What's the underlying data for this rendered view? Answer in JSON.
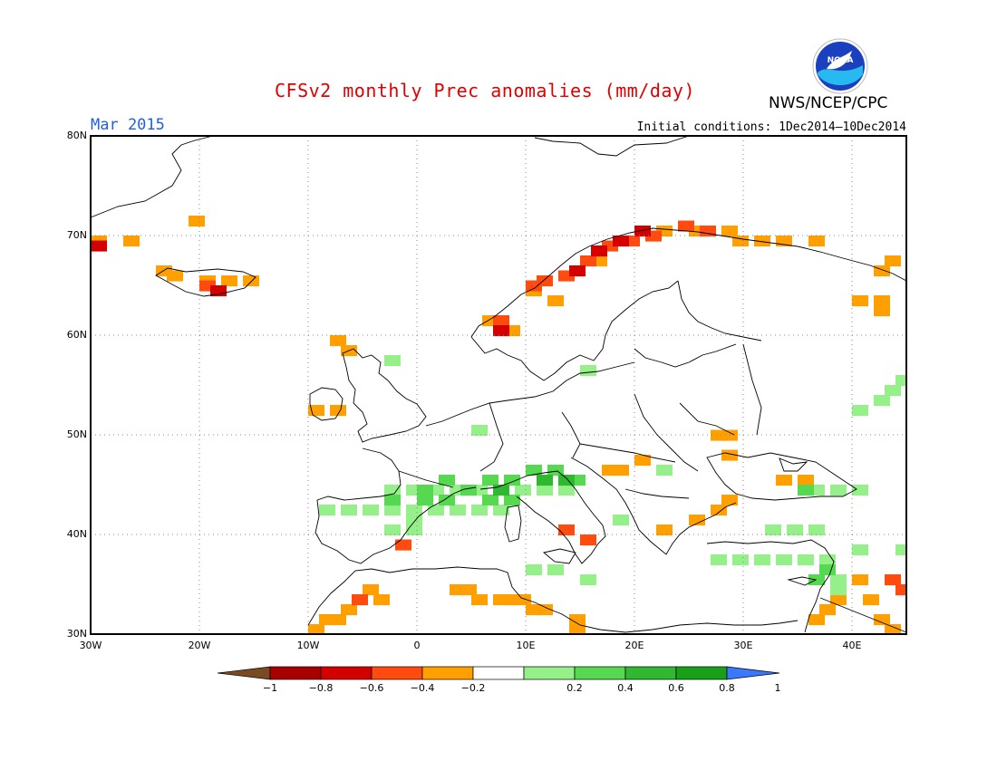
{
  "header": {
    "title": "CFSv2 monthly Prec anomalies (mm/day)",
    "agency": "NWS/NCEP/CPC",
    "month": "Mar 2015",
    "initial_conditions": "Initial conditions: 1Dec2014—10Dec2014",
    "logo_text": "NOAA"
  },
  "map": {
    "lon_range": [
      -30,
      45
    ],
    "lat_range": [
      30,
      80
    ],
    "lat_labels": [
      "80N",
      "70N",
      "60N",
      "50N",
      "40N",
      "30N"
    ],
    "lon_labels": [
      "30W",
      "20W",
      "10W",
      "0",
      "10E",
      "20E",
      "30E",
      "40E"
    ],
    "grid": "dotted"
  },
  "colorbar": {
    "labels": [
      "−1",
      "−0.8",
      "−0.6",
      "−0.4",
      "−0.2",
      "0.2",
      "0.4",
      "0.6",
      "0.8",
      "1"
    ],
    "colors": [
      "#7a4a25",
      "#a80000",
      "#d40000",
      "#ff4a10",
      "#ffa000",
      "#ffffff",
      "#96f08a",
      "#56d850",
      "#30b830",
      "#18a018",
      "#3a78ff"
    ]
  },
  "anomaly_regions": [
    {
      "level": "-0.4",
      "color": "#ffa000",
      "boxes": [
        [
          -30,
          69
        ],
        [
          -27,
          69
        ],
        [
          -21,
          71
        ],
        [
          -24,
          66
        ],
        [
          -23,
          65.5
        ],
        [
          -20,
          65
        ],
        [
          -18,
          65
        ],
        [
          -16,
          65
        ],
        [
          -8,
          59
        ],
        [
          -7,
          58
        ],
        [
          -10,
          52
        ],
        [
          -8,
          52
        ],
        [
          6,
          61
        ],
        [
          8,
          60
        ],
        [
          10,
          64
        ],
        [
          12,
          63
        ],
        [
          14,
          66
        ],
        [
          16,
          67
        ],
        [
          22,
          70
        ],
        [
          25,
          70
        ],
        [
          28,
          70
        ],
        [
          29,
          69
        ],
        [
          31,
          69
        ],
        [
          33,
          69
        ],
        [
          36,
          69
        ],
        [
          43,
          67
        ],
        [
          42,
          66
        ],
        [
          42,
          63
        ],
        [
          42,
          62
        ],
        [
          40,
          63
        ],
        [
          18,
          46
        ],
        [
          17,
          46
        ],
        [
          20,
          47
        ],
        [
          25,
          41
        ],
        [
          27,
          42
        ],
        [
          28,
          43
        ],
        [
          22,
          40
        ],
        [
          27,
          49.5
        ],
        [
          28,
          49.5
        ],
        [
          28,
          47.5
        ],
        [
          33,
          45
        ],
        [
          35,
          45
        ],
        [
          3,
          34
        ],
        [
          4,
          34
        ],
        [
          5,
          33
        ],
        [
          7,
          33
        ],
        [
          8,
          33
        ],
        [
          9,
          33
        ],
        [
          10,
          32
        ],
        [
          11,
          32
        ],
        [
          -8,
          31
        ],
        [
          -7,
          32
        ],
        [
          -5,
          34
        ],
        [
          -4,
          33
        ],
        [
          -10,
          30
        ],
        [
          -9,
          31
        ],
        [
          14,
          31
        ],
        [
          14,
          30
        ],
        [
          36,
          31
        ],
        [
          37,
          32
        ],
        [
          38,
          33
        ],
        [
          40,
          35
        ],
        [
          41,
          33
        ],
        [
          42,
          31
        ],
        [
          43,
          30
        ],
        [
          44,
          34
        ]
      ]
    },
    {
      "level": "-0.6",
      "color": "#ff4a10",
      "boxes": [
        [
          -20,
          64.5
        ],
        [
          -2,
          38.5
        ],
        [
          -6,
          33
        ],
        [
          13,
          40
        ],
        [
          15,
          39
        ],
        [
          7,
          61
        ],
        [
          10,
          64.5
        ],
        [
          11,
          65
        ],
        [
          13,
          65.5
        ],
        [
          15,
          67
        ],
        [
          16,
          68
        ],
        [
          17,
          68.5
        ],
        [
          19,
          69
        ],
        [
          21,
          69.5
        ],
        [
          24,
          70.5
        ],
        [
          26,
          70
        ],
        [
          43,
          35
        ],
        [
          44,
          34
        ]
      ]
    },
    {
      "level": "-0.8",
      "color": "#d40000",
      "boxes": [
        [
          -30,
          68.5
        ],
        [
          -19,
          64
        ],
        [
          7,
          60
        ],
        [
          14,
          66
        ],
        [
          16,
          68
        ],
        [
          18,
          69
        ],
        [
          20,
          70
        ]
      ]
    },
    {
      "level": "0.2",
      "color": "#96f08a",
      "boxes": [
        [
          -3,
          44
        ],
        [
          -1,
          44
        ],
        [
          1,
          44
        ],
        [
          3,
          44
        ],
        [
          5,
          44
        ],
        [
          7,
          44
        ],
        [
          9,
          44
        ],
        [
          11,
          44
        ],
        [
          13,
          44
        ],
        [
          -1,
          42
        ],
        [
          1,
          42
        ],
        [
          3,
          42
        ],
        [
          5,
          42
        ],
        [
          7,
          42
        ],
        [
          -9,
          42
        ],
        [
          -7,
          42
        ],
        [
          -5,
          42
        ],
        [
          -3,
          42
        ],
        [
          -1,
          41
        ],
        [
          -3,
          40
        ],
        [
          -1,
          40
        ],
        [
          15,
          56
        ],
        [
          5,
          50
        ],
        [
          -3,
          57
        ],
        [
          10,
          36
        ],
        [
          12,
          36
        ],
        [
          15,
          35
        ],
        [
          18,
          41
        ],
        [
          22,
          46
        ],
        [
          32,
          40
        ],
        [
          34,
          40
        ],
        [
          36,
          40
        ],
        [
          27,
          37
        ],
        [
          29,
          37
        ],
        [
          31,
          37
        ],
        [
          33,
          37
        ],
        [
          35,
          37
        ],
        [
          37,
          37
        ],
        [
          40,
          52
        ],
        [
          42,
          53
        ],
        [
          43,
          54
        ],
        [
          44,
          55
        ],
        [
          36,
          44
        ],
        [
          38,
          44
        ],
        [
          40,
          44
        ],
        [
          40,
          38
        ],
        [
          38,
          35
        ],
        [
          38,
          34
        ],
        [
          44,
          38
        ]
      ]
    },
    {
      "level": "0.4",
      "color": "#56d850",
      "boxes": [
        [
          0,
          44
        ],
        [
          2,
          45
        ],
        [
          4,
          44
        ],
        [
          6,
          45
        ],
        [
          8,
          45
        ],
        [
          10,
          46
        ],
        [
          12,
          46
        ],
        [
          14,
          45
        ],
        [
          6,
          43
        ],
        [
          8,
          43
        ],
        [
          2,
          43
        ],
        [
          0,
          43
        ],
        [
          -3,
          43
        ],
        [
          35,
          44
        ],
        [
          37,
          36
        ],
        [
          36,
          35
        ]
      ]
    },
    {
      "level": "0.6",
      "color": "#30b830",
      "boxes": [
        [
          7,
          44
        ],
        [
          11,
          45
        ],
        [
          13,
          45
        ]
      ]
    }
  ]
}
